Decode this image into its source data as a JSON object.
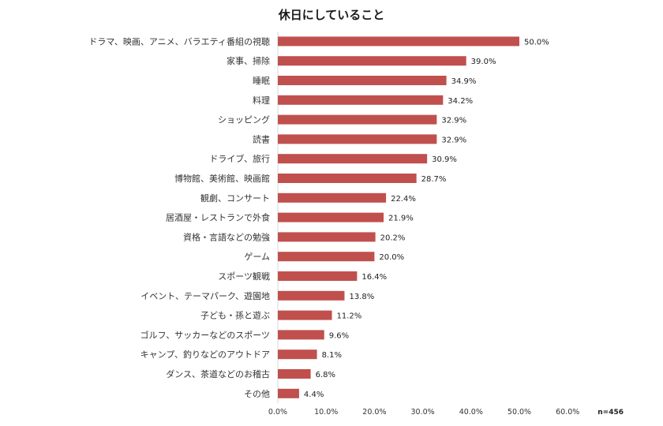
{
  "chart_data": {
    "type": "bar",
    "orientation": "horizontal",
    "title": "休日にしていること",
    "categories": [
      "ドラマ、映画、アニメ、バラエティ番組の視聴",
      "家事、掃除",
      "睡眠",
      "料理",
      "ショッピング",
      "読書",
      "ドライブ、旅行",
      "博物館、美術館、映画館",
      "観劇、コンサート",
      "居酒屋・レストランで外食",
      "資格・言語などの勉強",
      "ゲーム",
      "スポーツ観戦",
      "イベント、テーマパーク、遊園地",
      "子ども・孫と遊ぶ",
      "ゴルフ、サッカーなどのスポーツ",
      "キャンプ、釣りなどのアウトドア",
      "ダンス、茶道などのお稽古",
      "その他"
    ],
    "values": [
      50.0,
      39.0,
      34.9,
      34.2,
      32.9,
      32.9,
      30.9,
      28.7,
      22.4,
      21.9,
      20.2,
      20.0,
      16.4,
      13.8,
      11.2,
      9.6,
      8.1,
      6.8,
      4.4
    ],
    "data_labels": [
      "50.0%",
      "39.0%",
      "34.9%",
      "34.2%",
      "32.9%",
      "32.9%",
      "30.9%",
      "28.7%",
      "22.4%",
      "21.9%",
      "20.2%",
      "20.0%",
      "16.4%",
      "13.8%",
      "11.2%",
      "9.6%",
      "8.1%",
      "6.8%",
      "4.4%"
    ],
    "xlim": [
      0,
      70
    ],
    "xticks": [
      0,
      10,
      20,
      30,
      40,
      50,
      60
    ],
    "xtick_labels": [
      "0.0%",
      "10.0%",
      "20.0%",
      "30.0%",
      "40.0%",
      "50.0%",
      "60.0%"
    ],
    "xlabel": "",
    "ylabel": "",
    "grid": false,
    "bar_color": "#c0504d",
    "note": "n=456"
  }
}
